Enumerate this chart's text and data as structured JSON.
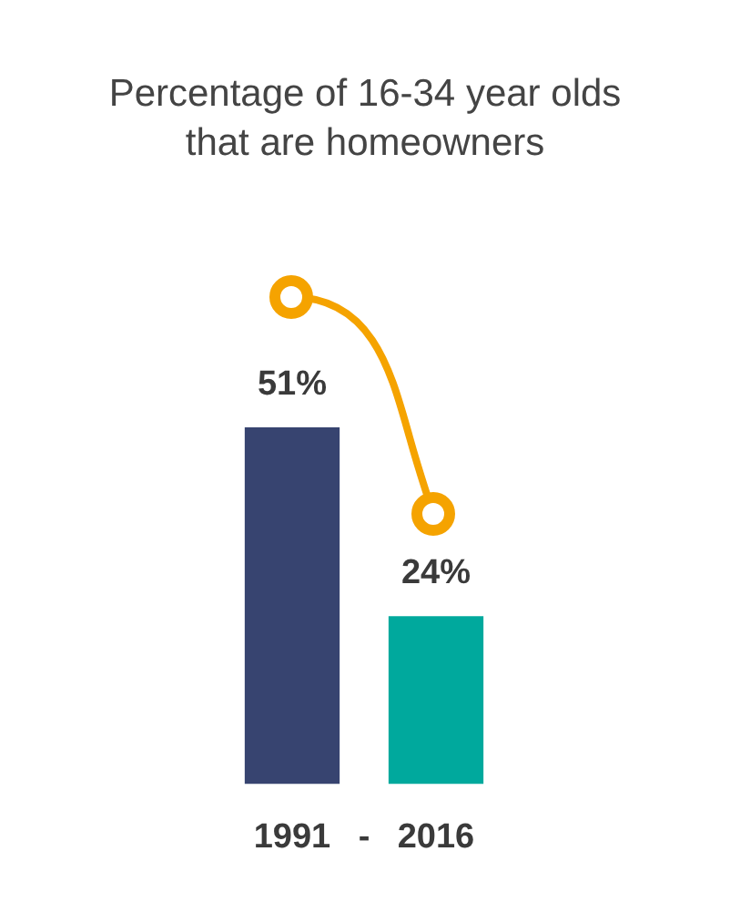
{
  "chart_data": {
    "type": "bar",
    "title": "Percentage of 16-34 year olds that are homeowners",
    "categories": [
      "1991",
      "2016"
    ],
    "values": [
      51,
      24
    ],
    "colors": [
      "#374470",
      "#00a99d"
    ],
    "value_labels": [
      "51%",
      "24%"
    ],
    "annotations": [
      "-"
    ],
    "grid": false,
    "legend": false
  }
}
